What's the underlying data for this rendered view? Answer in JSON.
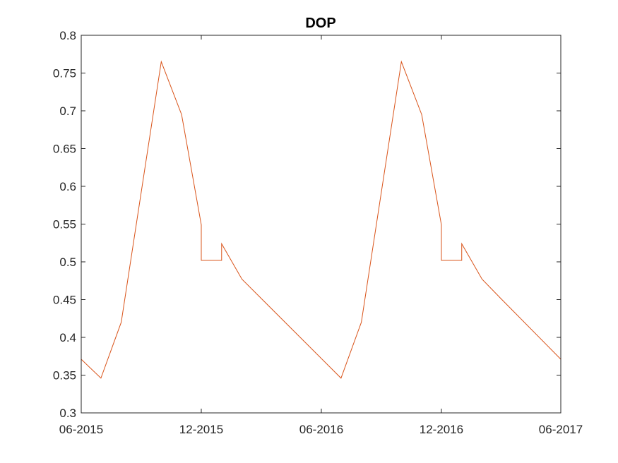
{
  "colors": {
    "series": "#D95319",
    "axis": "#262626",
    "background": "#ffffff"
  },
  "chart_data": {
    "type": "line",
    "title": "DOP",
    "xlabel": "",
    "ylabel": "",
    "xlim": [
      "2015-06-01",
      "2017-06-01"
    ],
    "ylim": [
      0.3,
      0.8
    ],
    "xticks": [
      "2015-06-01",
      "2015-12-01",
      "2016-06-01",
      "2016-12-01",
      "2017-06-01"
    ],
    "xtick_labels": [
      "06-2015",
      "12-2015",
      "06-2016",
      "12-2016",
      "06-2017"
    ],
    "yticks": [
      0.3,
      0.35,
      0.4,
      0.45,
      0.5,
      0.55,
      0.6,
      0.65,
      0.7,
      0.75,
      0.8
    ],
    "ytick_labels": [
      "0.3",
      "0.35",
      "0.4",
      "0.45",
      "0.5",
      "0.55",
      "0.6",
      "0.65",
      "0.7",
      "0.75",
      "0.8"
    ],
    "grid": false,
    "box": true,
    "series": [
      {
        "x": [
          "2015-06-01",
          "2015-07-01",
          "2015-08-01",
          "2015-10-01",
          "2015-11-01",
          "2015-12-01",
          "2015-12-01",
          "2016-01-01",
          "2016-01-01",
          "2016-02-01",
          "2016-07-01",
          "2016-08-01",
          "2016-10-01",
          "2016-11-01",
          "2016-12-01",
          "2016-12-01",
          "2017-01-01",
          "2017-01-01",
          "2017-02-01",
          "2017-03-01",
          "2017-06-01"
        ],
        "y": [
          0.371,
          0.346,
          0.42,
          0.765,
          0.695,
          0.549,
          0.502,
          0.502,
          0.524,
          0.477,
          0.346,
          0.42,
          0.765,
          0.695,
          0.549,
          0.502,
          0.502,
          0.524,
          0.477,
          0.452,
          0.371
        ]
      }
    ]
  }
}
